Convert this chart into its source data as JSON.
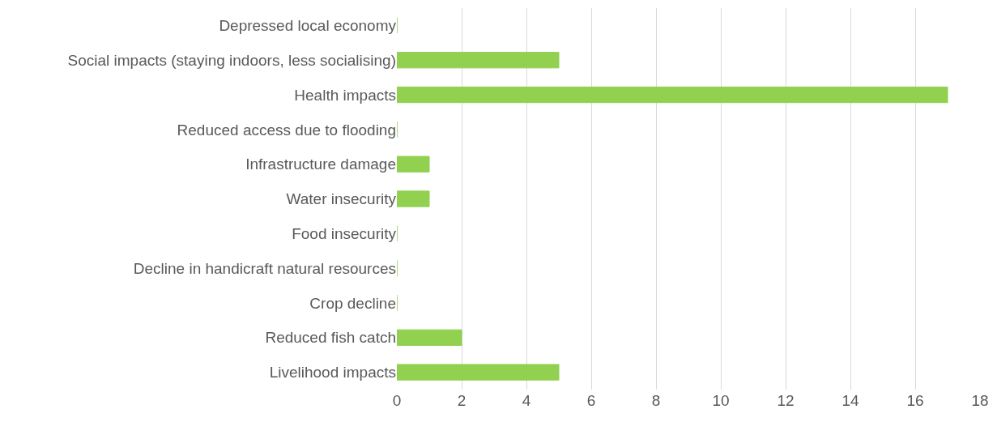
{
  "chart_data": {
    "type": "bar",
    "orientation": "horizontal",
    "categories": [
      "Depressed local economy",
      "Social impacts (staying indoors, less socialising)",
      "Health impacts",
      "Reduced access due to flooding",
      "Infrastructure damage",
      "Water insecurity",
      "Food insecurity",
      "Decline in handicraft natural resources",
      "Crop decline",
      "Reduced fish catch",
      "Livelihood impacts"
    ],
    "values": [
      0,
      5,
      17,
      0,
      1,
      1,
      0,
      0,
      0,
      2,
      5
    ],
    "color": "#92d050",
    "xlim": [
      0,
      18
    ],
    "xticks": [
      0,
      2,
      4,
      6,
      8,
      10,
      12,
      14,
      16,
      18
    ],
    "grid": "x"
  }
}
